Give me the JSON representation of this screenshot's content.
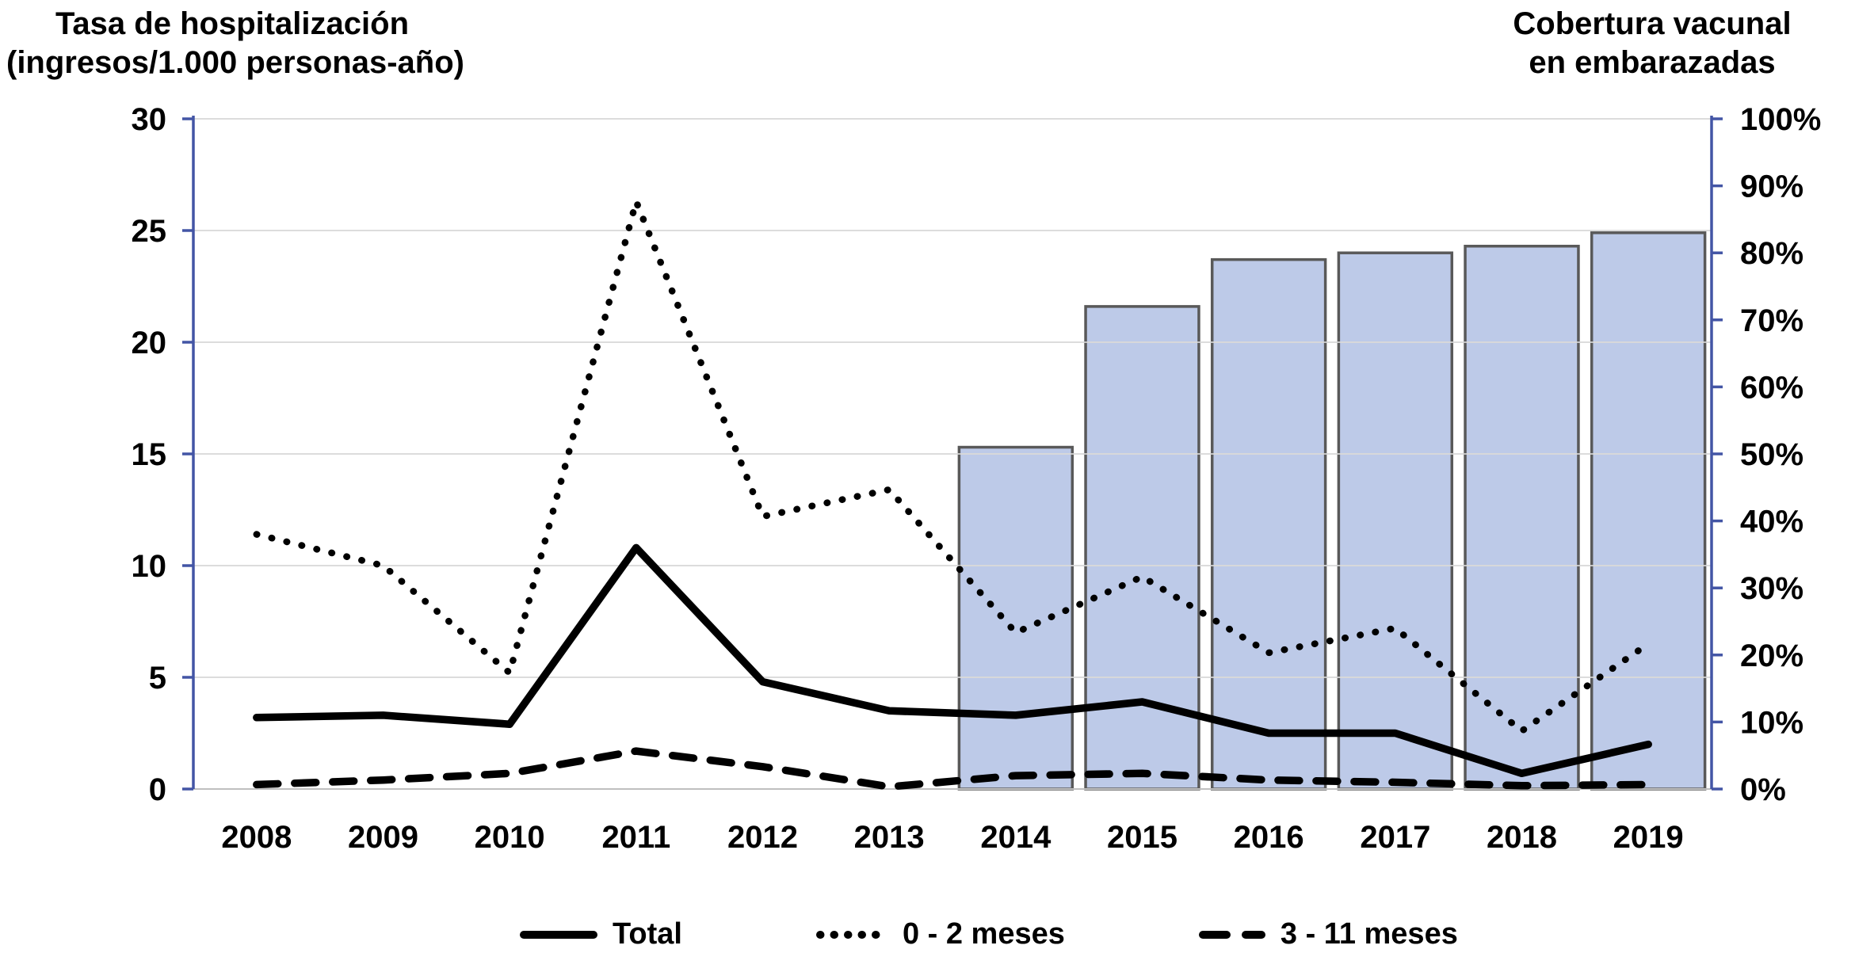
{
  "titles": {
    "left_line1": "Tasa de hospitalización",
    "left_line2": "(ingresos/1.000 personas-año)",
    "right_line1": "Cobertura vacunal",
    "right_line2": "en embarazadas"
  },
  "chart_data": {
    "type": "combo-line-bar",
    "categories": [
      "2008",
      "2009",
      "2010",
      "2011",
      "2012",
      "2013",
      "2014",
      "2015",
      "2016",
      "2017",
      "2018",
      "2019"
    ],
    "series": [
      {
        "name": "Total",
        "type": "line",
        "style": "solid",
        "axis": "left",
        "values": [
          3.2,
          3.3,
          2.9,
          10.8,
          4.8,
          3.5,
          3.3,
          3.9,
          2.5,
          2.5,
          0.7,
          2.0
        ]
      },
      {
        "name": "0 - 2 meses",
        "type": "line",
        "style": "dotted",
        "axis": "left",
        "values": [
          11.4,
          10.0,
          5.2,
          26.3,
          12.2,
          13.4,
          7.0,
          9.5,
          6.1,
          7.2,
          2.6,
          6.5
        ]
      },
      {
        "name": "3 - 11 meses",
        "type": "line",
        "style": "dashed",
        "axis": "left",
        "values": [
          0.2,
          0.4,
          0.7,
          1.7,
          1.0,
          0.1,
          0.6,
          0.7,
          0.4,
          0.3,
          0.15,
          0.2
        ]
      },
      {
        "name": "Cobertura vacunal en embarazadas",
        "type": "bar",
        "axis": "right",
        "values_pct": [
          null,
          null,
          null,
          null,
          null,
          null,
          51,
          72,
          79,
          80,
          81,
          83
        ]
      }
    ],
    "left_axis": {
      "min": 0,
      "max": 30,
      "step": 5,
      "tick_labels": [
        "0",
        "5",
        "10",
        "15",
        "20",
        "25",
        "30"
      ]
    },
    "right_axis": {
      "min": 0,
      "max": 100,
      "step": 10,
      "tick_labels": [
        "0%",
        "10%",
        "20%",
        "30%",
        "40%",
        "50%",
        "60%",
        "70%",
        "80%",
        "90%",
        "100%"
      ]
    },
    "grid": true,
    "legend_position": "bottom"
  },
  "legend": [
    {
      "label": "Total",
      "swatch": "solid-line"
    },
    {
      "label": "0 - 2 meses",
      "swatch": "dotted-line"
    },
    {
      "label": "3 - 11 meses",
      "swatch": "dashed-line"
    }
  ],
  "colors": {
    "line": "#000000",
    "bar_fill": "#b7c6e6",
    "bar_border": "#595959",
    "axis": "#4355a5",
    "gridline": "#d6d6d6",
    "baseline": "#bfbfbf",
    "background": "#ffffff"
  }
}
